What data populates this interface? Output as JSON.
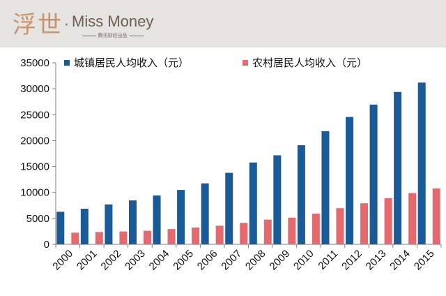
{
  "header": {
    "logo_cn": "浮世",
    "logo_dot": "·",
    "logo_en": "Miss Money",
    "logo_sub": "腾讯财经出品",
    "background": "#e6e4e1"
  },
  "chart_data": {
    "type": "bar",
    "categories": [
      "2000",
      "2001",
      "2002",
      "2003",
      "2004",
      "2005",
      "2006",
      "2007",
      "2008",
      "2009",
      "2010",
      "2011",
      "2012",
      "2013",
      "2014",
      "2015"
    ],
    "series": [
      {
        "name": "城镇居民人均收入（元）",
        "color": "#1a5a96",
        "values": [
          6280,
          6860,
          7700,
          8470,
          9420,
          10490,
          11760,
          13790,
          15780,
          17170,
          19110,
          21810,
          24560,
          26950,
          29380,
          31190
        ]
      },
      {
        "name": "农村居民人均收入（元）",
        "color": "#e36b6f",
        "values": [
          2250,
          2370,
          2480,
          2620,
          2940,
          3250,
          3590,
          4140,
          4760,
          5150,
          5920,
          6980,
          7920,
          8900,
          9890,
          10770
        ]
      }
    ],
    "yticks": [
      "0",
      "5000",
      "10000",
      "15000",
      "20000",
      "25000",
      "30000",
      "35000"
    ],
    "ylim": [
      0,
      35000
    ],
    "xlabel": "",
    "ylabel": "",
    "legend": "top",
    "grid": false
  }
}
